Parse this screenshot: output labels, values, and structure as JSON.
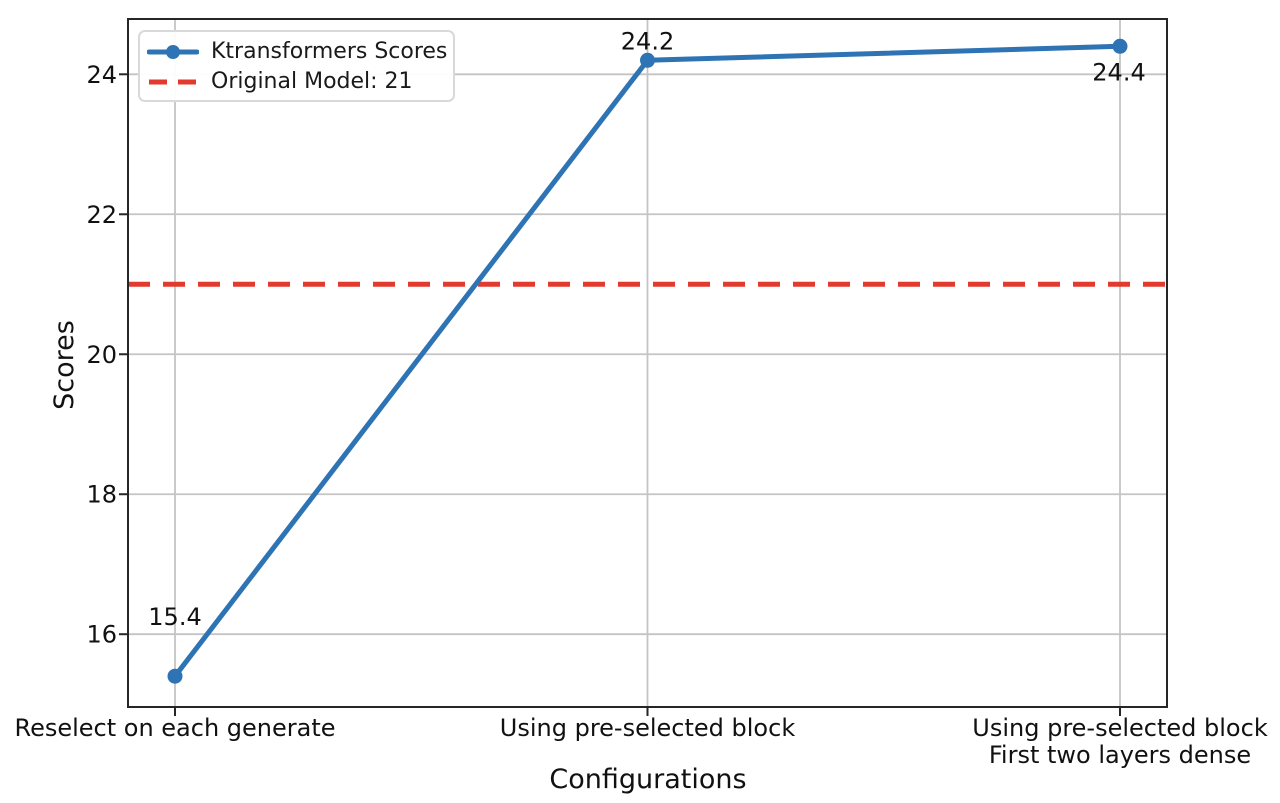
{
  "figure": {
    "background": "#ffffff"
  },
  "chart_data": {
    "type": "line",
    "title": "",
    "xlabel": "Configurations",
    "ylabel": "Scores",
    "categories": [
      "Reselect on each generate",
      "Using pre-selected block",
      "Using pre-selected block\nFirst two layers dense"
    ],
    "series": [
      {
        "name": "Ktransformers Scores",
        "values": [
          15.4,
          24.2,
          24.4
        ],
        "color": "#2e74b4",
        "marker": "circle",
        "point_labels": [
          "15.4",
          "24.2",
          "24.4"
        ]
      }
    ],
    "reference_line": {
      "label": "Original Model: 21",
      "value": 21,
      "color": "#e23a2e",
      "style": "dashed"
    },
    "yticks": [
      16,
      18,
      20,
      22,
      24
    ],
    "ylim": [
      14.96,
      24.79
    ],
    "grid": true,
    "legend_position": "upper-left",
    "colors": {
      "grid": "#c4c4c4",
      "spine": "#262626",
      "text": "#111111"
    }
  }
}
